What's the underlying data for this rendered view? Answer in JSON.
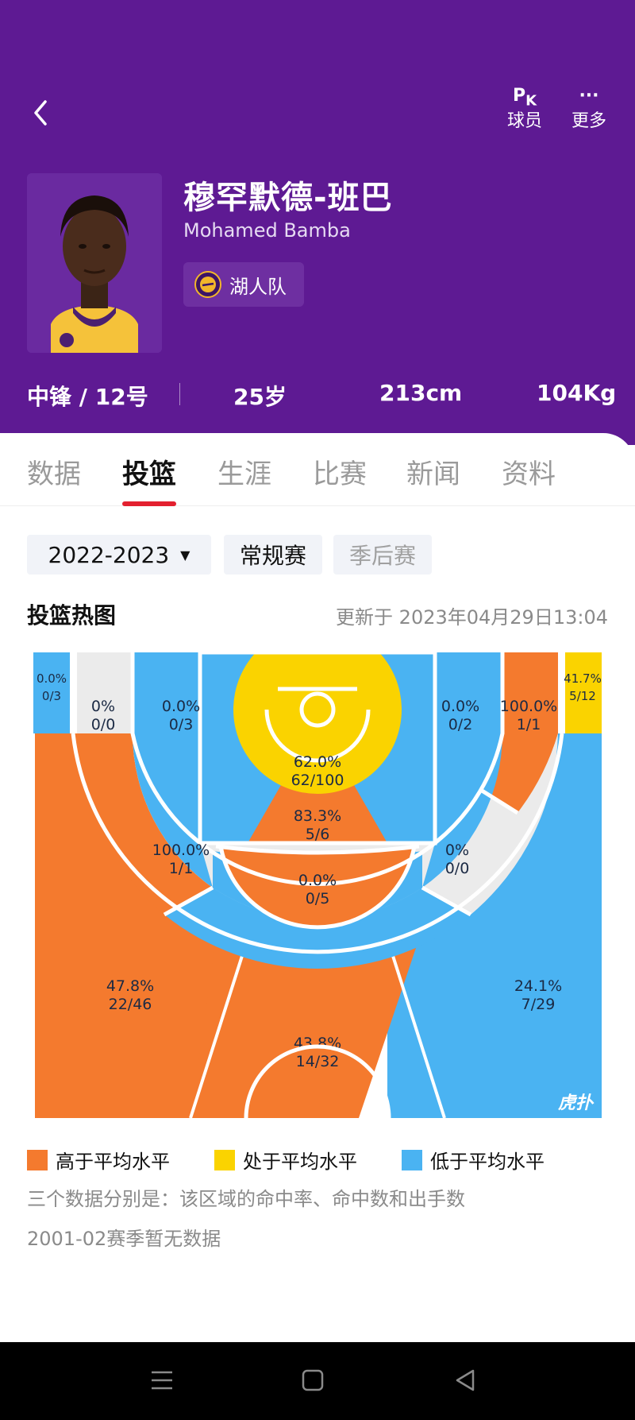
{
  "header": {
    "actions": [
      {
        "glyph": "P",
        "glyph_sub": "K",
        "label": "球员"
      },
      {
        "glyph": "···",
        "label": "更多"
      }
    ],
    "player": {
      "name_cn": "穆罕默德-班巴",
      "name_en": "Mohamed Bamba",
      "team": "湖人队"
    },
    "stats": {
      "position": "中锋 / 12号",
      "age": "25岁",
      "height": "213cm",
      "weight": "104Kg"
    }
  },
  "tabs": [
    "数据",
    "投篮",
    "生涯",
    "比赛",
    "新闻",
    "资料"
  ],
  "active_tab": "投篮",
  "filters": {
    "season": "2022-2023",
    "regular": "常规赛",
    "playoffs": "季后赛"
  },
  "heatmap": {
    "title": "投篮热图",
    "updated": "更新于 2023年04月29日13:04",
    "watermark": "虎扑",
    "colors": {
      "above": "#f47a2e",
      "average": "#fad300",
      "below": "#4ab3f2",
      "none": "#ebebeb",
      "lines": "#ffffff"
    },
    "zones": [
      {
        "id": "left-corner-three",
        "pct": "0.0%",
        "made_att": "0/3",
        "level": "below"
      },
      {
        "id": "left-baseline-long-two",
        "pct": "0%",
        "made_att": "0/0",
        "level": "none"
      },
      {
        "id": "left-short-mid",
        "pct": "0.0%",
        "made_att": "0/3",
        "level": "below"
      },
      {
        "id": "restricted-paint",
        "pct": "62.0%",
        "made_att": "62/100",
        "level": "average"
      },
      {
        "id": "right-short-mid",
        "pct": "0.0%",
        "made_att": "0/2",
        "level": "below"
      },
      {
        "id": "right-baseline-long-two",
        "pct": "100.0%",
        "made_att": "1/1",
        "level": "above"
      },
      {
        "id": "right-corner-three",
        "pct": "41.7%",
        "made_att": "5/12",
        "level": "average"
      },
      {
        "id": "free-throw-area",
        "pct": "83.3%",
        "made_att": "5/6",
        "level": "above"
      },
      {
        "id": "left-wing-long-two",
        "pct": "100.0%",
        "made_att": "1/1",
        "level": "above"
      },
      {
        "id": "right-wing-long-two",
        "pct": "0%",
        "made_att": "0/0",
        "level": "none"
      },
      {
        "id": "top-long-two",
        "pct": "0.0%",
        "made_att": "0/5",
        "level": "below"
      },
      {
        "id": "left-wing-three",
        "pct": "47.8%",
        "made_att": "22/46",
        "level": "above"
      },
      {
        "id": "top-three",
        "pct": "43.8%",
        "made_att": "14/32",
        "level": "above"
      },
      {
        "id": "right-wing-three",
        "pct": "24.1%",
        "made_att": "7/29",
        "level": "below"
      }
    ]
  },
  "legend": [
    {
      "label": "高于平均水平",
      "color": "#f47a2e"
    },
    {
      "label": "处于平均水平",
      "color": "#fad300"
    },
    {
      "label": "低于平均水平",
      "color": "#4ab3f2"
    }
  ],
  "notes": [
    "三个数据分别是：该区域的命中率、命中数和出手数",
    "2001-02赛季暂无数据"
  ]
}
